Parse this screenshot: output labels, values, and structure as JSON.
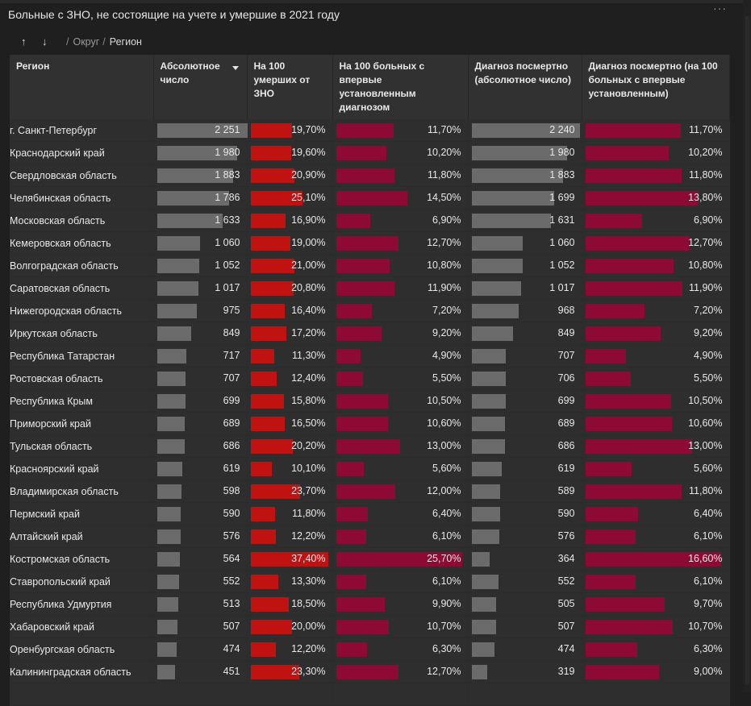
{
  "header": {
    "title": "Больные с ЗНО, не состоящие на учете и умершие в 2021 году",
    "more_label": "···"
  },
  "nav": {
    "up_arrow": "↑",
    "down_arrow": "↓",
    "crumb_okrug": "Округ",
    "crumb_region": "Регион",
    "separator": "/"
  },
  "columns": [
    "Регион",
    "Абсолютное число",
    "На 100 умерших от ЗНО",
    "На 100 больных с впервые установленным диагнозом",
    "Диагноз посмертно (абсолютное число)",
    "Диагноз посмертно (на 100 больных с впервые установленным)"
  ],
  "colors": {
    "gray_bar": "#6b6b6b",
    "red_bar": "#c11212",
    "crimson_bar": "#8c0a33"
  },
  "scales": {
    "abs_max": 2251,
    "per100_deaths_max": 37.4,
    "per100_new_max": 25.7,
    "posthumous_abs_max": 2240,
    "posthumous_per100_max": 16.6
  },
  "rows": [
    {
      "region": "г. Санкт-Петербург",
      "abs": "2 251",
      "abs_n": 2251,
      "d100": "19,70%",
      "d100_n": 19.7,
      "n100": "11,70%",
      "n100_n": 11.7,
      "pabs": "2 240",
      "pabs_n": 2240,
      "p100": "11,70%",
      "p100_n": 11.7
    },
    {
      "region": "Краснодарский край",
      "abs": "1 980",
      "abs_n": 1980,
      "d100": "19,60%",
      "d100_n": 19.6,
      "n100": "10,20%",
      "n100_n": 10.2,
      "pabs": "1 980",
      "pabs_n": 1980,
      "p100": "10,20%",
      "p100_n": 10.2
    },
    {
      "region": "Свердловская область",
      "abs": "1 883",
      "abs_n": 1883,
      "d100": "20,90%",
      "d100_n": 20.9,
      "n100": "11,80%",
      "n100_n": 11.8,
      "pabs": "1 883",
      "pabs_n": 1883,
      "p100": "11,80%",
      "p100_n": 11.8
    },
    {
      "region": "Челябинская область",
      "abs": "1 786",
      "abs_n": 1786,
      "d100": "25,10%",
      "d100_n": 25.1,
      "n100": "14,50%",
      "n100_n": 14.5,
      "pabs": "1 699",
      "pabs_n": 1699,
      "p100": "13,80%",
      "p100_n": 13.8
    },
    {
      "region": "Московская область",
      "abs": "1 633",
      "abs_n": 1633,
      "d100": "16,90%",
      "d100_n": 16.9,
      "n100": "6,90%",
      "n100_n": 6.9,
      "pabs": "1 631",
      "pabs_n": 1631,
      "p100": "6,90%",
      "p100_n": 6.9
    },
    {
      "region": "Кемеровская область",
      "abs": "1 060",
      "abs_n": 1060,
      "d100": "19,00%",
      "d100_n": 19.0,
      "n100": "12,70%",
      "n100_n": 12.7,
      "pabs": "1 060",
      "pabs_n": 1060,
      "p100": "12,70%",
      "p100_n": 12.7
    },
    {
      "region": "Волгоградская область",
      "abs": "1 052",
      "abs_n": 1052,
      "d100": "21,00%",
      "d100_n": 21.0,
      "n100": "10,80%",
      "n100_n": 10.8,
      "pabs": "1 052",
      "pabs_n": 1052,
      "p100": "10,80%",
      "p100_n": 10.8
    },
    {
      "region": "Саратовская область",
      "abs": "1 017",
      "abs_n": 1017,
      "d100": "20,80%",
      "d100_n": 20.8,
      "n100": "11,90%",
      "n100_n": 11.9,
      "pabs": "1 017",
      "pabs_n": 1017,
      "p100": "11,90%",
      "p100_n": 11.9
    },
    {
      "region": "Нижегородская область",
      "abs": "975",
      "abs_n": 975,
      "d100": "16,40%",
      "d100_n": 16.4,
      "n100": "7,20%",
      "n100_n": 7.2,
      "pabs": "968",
      "pabs_n": 968,
      "p100": "7,20%",
      "p100_n": 7.2
    },
    {
      "region": "Иркутская область",
      "abs": "849",
      "abs_n": 849,
      "d100": "17,20%",
      "d100_n": 17.2,
      "n100": "9,20%",
      "n100_n": 9.2,
      "pabs": "849",
      "pabs_n": 849,
      "p100": "9,20%",
      "p100_n": 9.2
    },
    {
      "region": "Республика Татарстан",
      "abs": "717",
      "abs_n": 717,
      "d100": "11,30%",
      "d100_n": 11.3,
      "n100": "4,90%",
      "n100_n": 4.9,
      "pabs": "707",
      "pabs_n": 707,
      "p100": "4,90%",
      "p100_n": 4.9
    },
    {
      "region": "Ростовская область",
      "abs": "707",
      "abs_n": 707,
      "d100": "12,40%",
      "d100_n": 12.4,
      "n100": "5,50%",
      "n100_n": 5.5,
      "pabs": "706",
      "pabs_n": 706,
      "p100": "5,50%",
      "p100_n": 5.5
    },
    {
      "region": "Республика Крым",
      "abs": "699",
      "abs_n": 699,
      "d100": "15,80%",
      "d100_n": 15.8,
      "n100": "10,50%",
      "n100_n": 10.5,
      "pabs": "699",
      "pabs_n": 699,
      "p100": "10,50%",
      "p100_n": 10.5
    },
    {
      "region": "Приморский край",
      "abs": "689",
      "abs_n": 689,
      "d100": "16,50%",
      "d100_n": 16.5,
      "n100": "10,60%",
      "n100_n": 10.6,
      "pabs": "689",
      "pabs_n": 689,
      "p100": "10,60%",
      "p100_n": 10.6
    },
    {
      "region": "Тульская область",
      "abs": "686",
      "abs_n": 686,
      "d100": "20,20%",
      "d100_n": 20.2,
      "n100": "13,00%",
      "n100_n": 13.0,
      "pabs": "686",
      "pabs_n": 686,
      "p100": "13,00%",
      "p100_n": 13.0
    },
    {
      "region": "Красноярский край",
      "abs": "619",
      "abs_n": 619,
      "d100": "10,10%",
      "d100_n": 10.1,
      "n100": "5,60%",
      "n100_n": 5.6,
      "pabs": "619",
      "pabs_n": 619,
      "p100": "5,60%",
      "p100_n": 5.6
    },
    {
      "region": "Владимирская область",
      "abs": "598",
      "abs_n": 598,
      "d100": "23,70%",
      "d100_n": 23.7,
      "n100": "12,00%",
      "n100_n": 12.0,
      "pabs": "589",
      "pabs_n": 589,
      "p100": "11,80%",
      "p100_n": 11.8
    },
    {
      "region": "Пермский край",
      "abs": "590",
      "abs_n": 590,
      "d100": "11,80%",
      "d100_n": 11.8,
      "n100": "6,40%",
      "n100_n": 6.4,
      "pabs": "590",
      "pabs_n": 590,
      "p100": "6,40%",
      "p100_n": 6.4
    },
    {
      "region": "Алтайский край",
      "abs": "576",
      "abs_n": 576,
      "d100": "12,20%",
      "d100_n": 12.2,
      "n100": "6,10%",
      "n100_n": 6.1,
      "pabs": "576",
      "pabs_n": 576,
      "p100": "6,10%",
      "p100_n": 6.1
    },
    {
      "region": "Костромская область",
      "abs": "564",
      "abs_n": 564,
      "d100": "37,40%",
      "d100_n": 37.4,
      "n100": "25,70%",
      "n100_n": 25.7,
      "pabs": "364",
      "pabs_n": 364,
      "p100": "16,60%",
      "p100_n": 16.6
    },
    {
      "region": "Ставропольский край",
      "abs": "552",
      "abs_n": 552,
      "d100": "13,30%",
      "d100_n": 13.3,
      "n100": "6,10%",
      "n100_n": 6.1,
      "pabs": "552",
      "pabs_n": 552,
      "p100": "6,10%",
      "p100_n": 6.1
    },
    {
      "region": "Республика Удмуртия",
      "abs": "513",
      "abs_n": 513,
      "d100": "18,50%",
      "d100_n": 18.5,
      "n100": "9,90%",
      "n100_n": 9.9,
      "pabs": "505",
      "pabs_n": 505,
      "p100": "9,70%",
      "p100_n": 9.7
    },
    {
      "region": "Хабаровский край",
      "abs": "507",
      "abs_n": 507,
      "d100": "20,00%",
      "d100_n": 20.0,
      "n100": "10,70%",
      "n100_n": 10.7,
      "pabs": "507",
      "pabs_n": 507,
      "p100": "10,70%",
      "p100_n": 10.7
    },
    {
      "region": "Оренбургская область",
      "abs": "474",
      "abs_n": 474,
      "d100": "12,20%",
      "d100_n": 12.2,
      "n100": "6,30%",
      "n100_n": 6.3,
      "pabs": "474",
      "pabs_n": 474,
      "p100": "6,30%",
      "p100_n": 6.3
    },
    {
      "region": "Калининградская область",
      "abs": "451",
      "abs_n": 451,
      "d100": "23,30%",
      "d100_n": 23.3,
      "n100": "12,70%",
      "n100_n": 12.7,
      "pabs": "319",
      "pabs_n": 319,
      "p100": "9,00%",
      "p100_n": 9.0
    }
  ]
}
